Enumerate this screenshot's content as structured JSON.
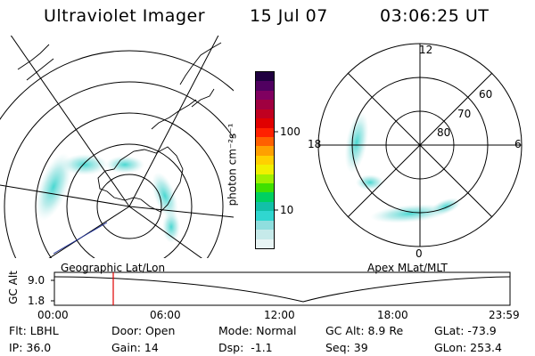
{
  "header": {
    "title": "Ultraviolet Imager",
    "date": "15 Jul 07",
    "time": "03:06:25 UT"
  },
  "left_panel": {
    "caption": "Geographic Lat/Lon"
  },
  "right_panel": {
    "caption": "Apex MLat/MLT",
    "mlt_labels": [
      "12",
      "6",
      "0",
      "18"
    ],
    "lat_labels": [
      "60",
      "70",
      "80"
    ]
  },
  "colorbar": {
    "unit_label": "photon cm⁻²s⁻¹",
    "ticks": [
      "100",
      "10"
    ],
    "scale": "log",
    "colors": [
      "#e8f4f4",
      "#c6eaea",
      "#8fdede",
      "#30d6d0",
      "#12c0a8",
      "#00d060",
      "#40e000",
      "#a0f000",
      "#f0f000",
      "#ffd000",
      "#ffa000",
      "#ff6000",
      "#ff2000",
      "#e00000",
      "#c00020",
      "#a00040",
      "#800060",
      "#500060",
      "#200040"
    ]
  },
  "altitude_plot": {
    "ylabel": "GC Alt",
    "yticks": [
      "9.0",
      "1.8"
    ],
    "xticks": [
      "00:00",
      "06:00",
      "12:00",
      "18:00",
      "23:59"
    ],
    "marker_time_hours": 3.1,
    "marker_color": "#e00000"
  },
  "info": {
    "flt": "Flt: LBHL",
    "door": "Door: Open",
    "mode": "Mode: Normal",
    "gc_alt": "GC Alt: 8.9 Re",
    "glat": "GLat: -73.9",
    "ip": "IP: 36.0",
    "gain": "Gain: 14",
    "dsp": "Dsp:  -1.1",
    "seq": "Seq: 39",
    "glon": "GLon: 253.4"
  }
}
